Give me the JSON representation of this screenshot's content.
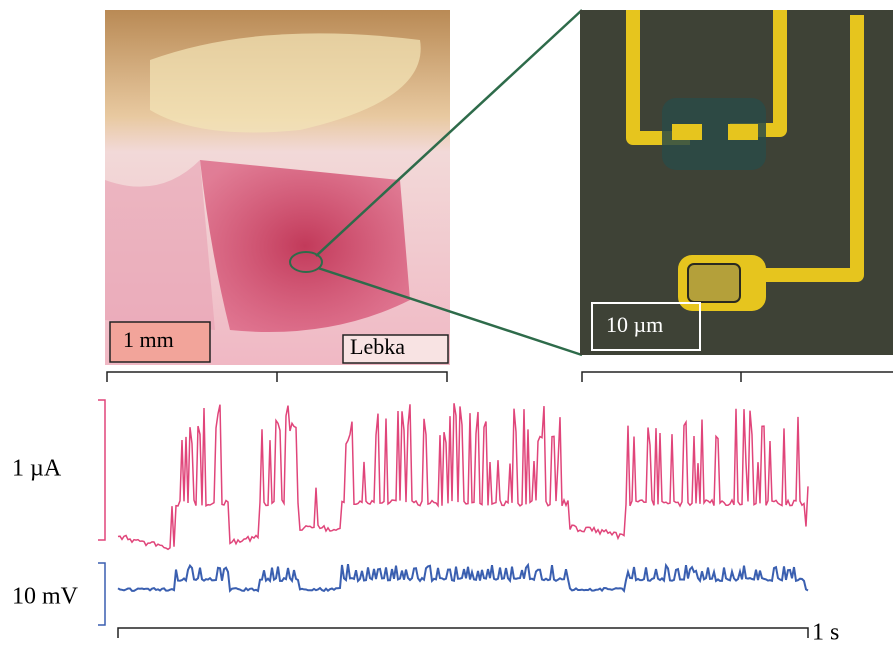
{
  "left_image": {
    "scale_label": "1 mm",
    "caption": "Lebka"
  },
  "right_image": {
    "scale_label": "10 µm"
  },
  "traces": {
    "current_scale": "1 µA",
    "voltage_scale": "10 mV",
    "time_scale": "1 s"
  }
}
